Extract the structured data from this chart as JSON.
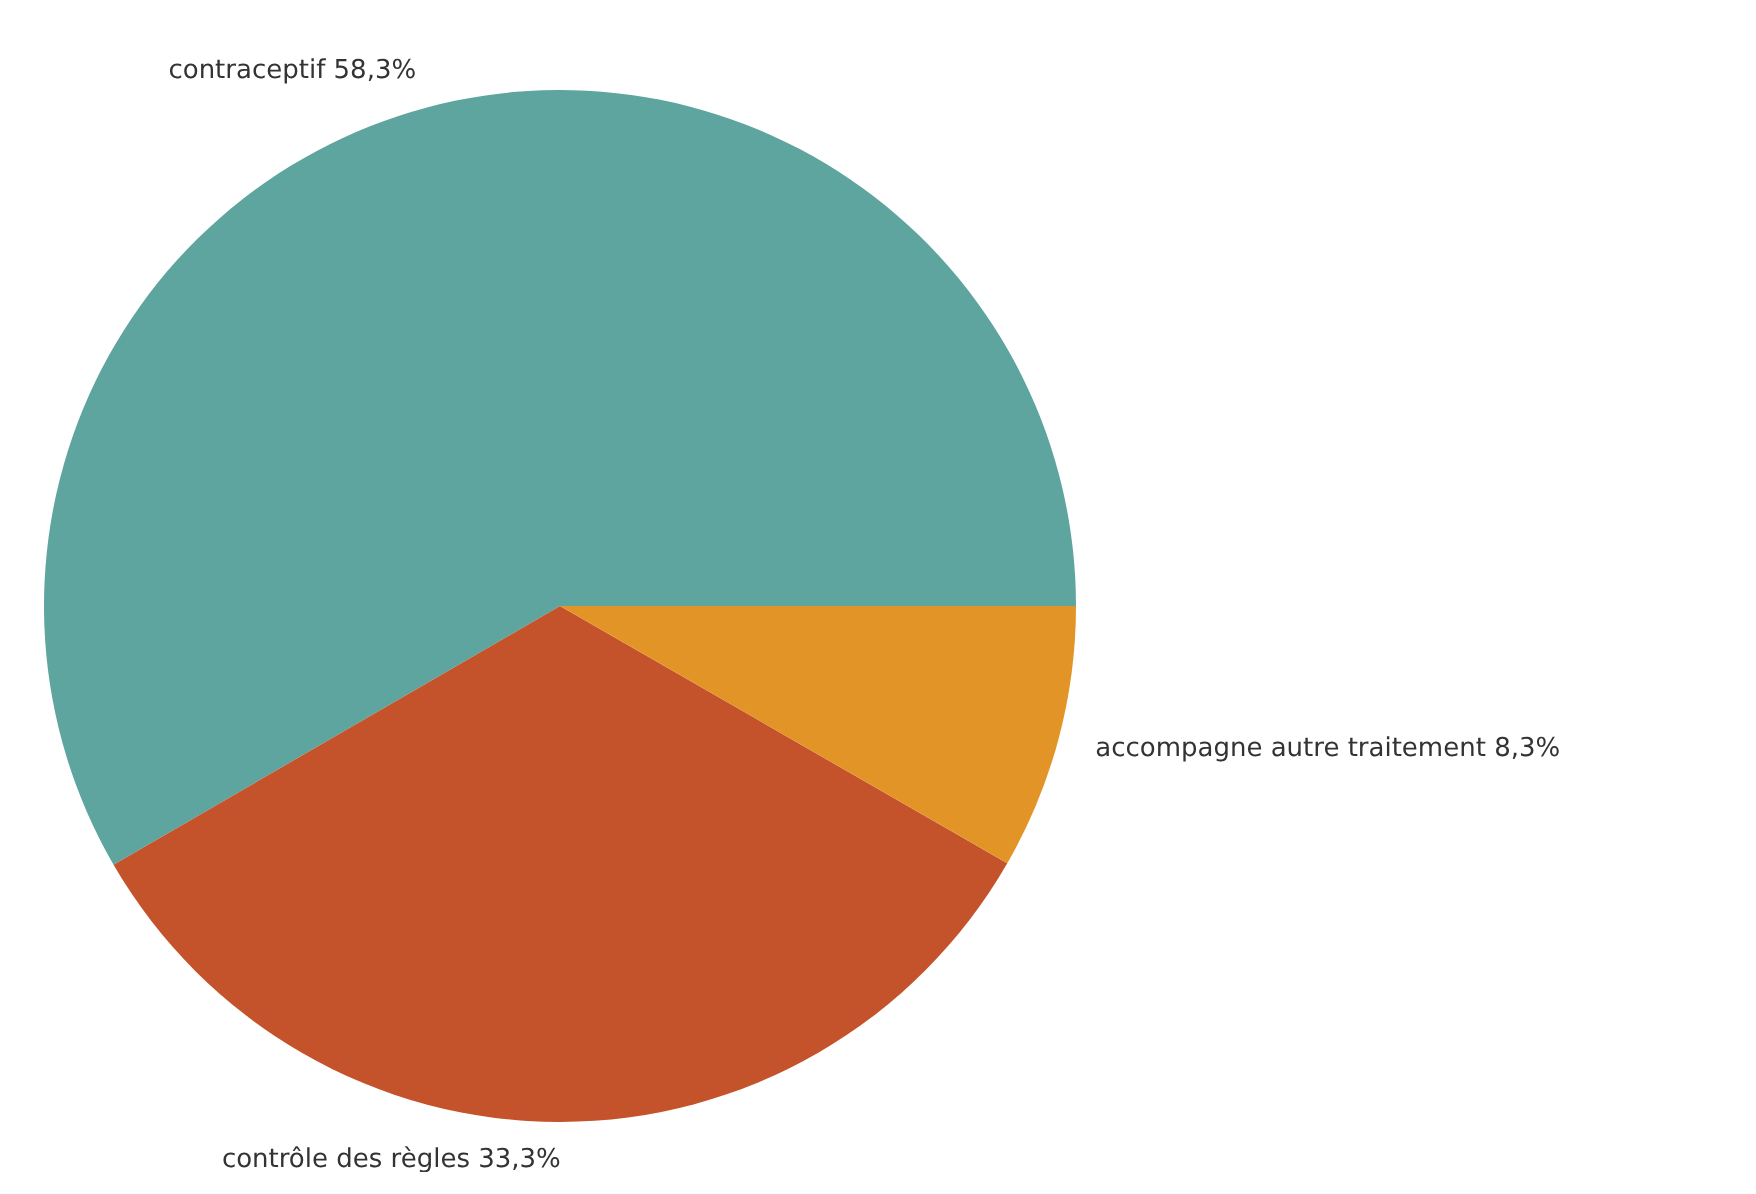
{
  "chart_data": {
    "type": "pie",
    "categories": [
      "contraceptif",
      "contrôle des règles",
      "accompagne autre traitement"
    ],
    "values": [
      58.3,
      33.3,
      8.3
    ],
    "value_labels": [
      "58,3%",
      "33,3%",
      "8,3%"
    ],
    "colors": [
      "#5ea5a0",
      "#c4532c",
      "#e39427"
    ],
    "legend": false
  }
}
